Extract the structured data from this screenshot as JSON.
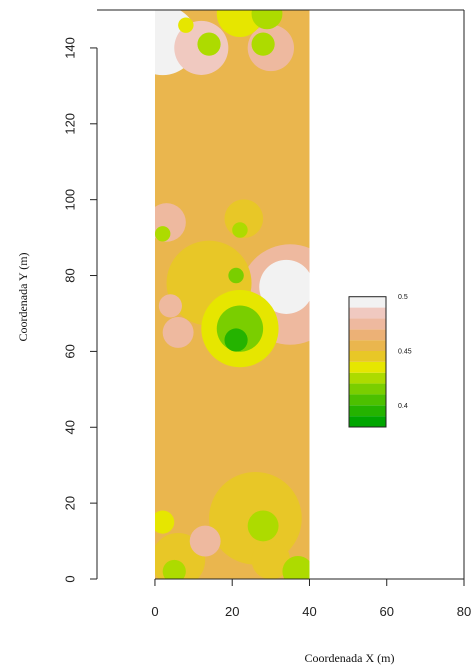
{
  "chart_data": {
    "type": "heatmap",
    "xlabel": "Coordenada X (m)",
    "ylabel": "Coordenada Y (m)",
    "xlim": [
      -15,
      80
    ],
    "ylim": [
      0,
      150
    ],
    "x_ticks": [
      "0",
      "20",
      "40",
      "60",
      "80"
    ],
    "y_ticks": [
      "0",
      "20",
      "40",
      "60",
      "80",
      "100",
      "120",
      "140"
    ],
    "field_extent": {
      "x": [
        0,
        40
      ],
      "y": [
        0,
        150
      ]
    },
    "background_value": 0.455,
    "legend": {
      "labels": [
        "0.5",
        "0.45",
        "0.4"
      ],
      "label_values": [
        0.5,
        0.45,
        0.4
      ],
      "breaks": [
        0.38,
        0.39,
        0.4,
        0.41,
        0.42,
        0.43,
        0.44,
        0.45,
        0.46,
        0.47,
        0.48,
        0.49,
        0.5,
        0.51,
        0.52
      ],
      "colors": [
        "#00a600",
        "#24b300",
        "#4cc000",
        "#7ace00",
        "#addb00",
        "#e6e600",
        "#e8c727",
        "#eab64e",
        "#ecb176",
        "#eeb99f",
        "#f0c9c0",
        "#f2f2f2"
      ]
    },
    "zones": [
      {
        "x": 2,
        "y": 142,
        "r": 9,
        "value": 0.51
      },
      {
        "x": 3,
        "y": 143,
        "r": 4,
        "value": 0.52
      },
      {
        "x": 12,
        "y": 140,
        "r": 7,
        "value": 0.48
      },
      {
        "x": 30,
        "y": 140,
        "r": 6,
        "value": 0.47
      },
      {
        "x": 22,
        "y": 149,
        "r": 6,
        "value": 0.43
      },
      {
        "x": 29,
        "y": 149,
        "r": 4,
        "value": 0.42
      },
      {
        "x": 14,
        "y": 141,
        "r": 3,
        "value": 0.42
      },
      {
        "x": 28,
        "y": 141,
        "r": 3,
        "value": 0.42
      },
      {
        "x": 8,
        "y": 146,
        "r": 2,
        "value": 0.43
      },
      {
        "x": 3,
        "y": 94,
        "r": 5,
        "value": 0.47
      },
      {
        "x": 23,
        "y": 95,
        "r": 5,
        "value": 0.44
      },
      {
        "x": 22,
        "y": 92,
        "r": 2,
        "value": 0.42
      },
      {
        "x": 35,
        "y": 75,
        "r": 13,
        "value": 0.475
      },
      {
        "x": 34,
        "y": 77,
        "r": 7,
        "value": 0.49
      },
      {
        "x": 35,
        "y": 78,
        "r": 3,
        "value": 0.505
      },
      {
        "x": 14,
        "y": 78,
        "r": 11,
        "value": 0.44
      },
      {
        "x": 22,
        "y": 66,
        "r": 10,
        "value": 0.43
      },
      {
        "x": 22,
        "y": 66,
        "r": 6,
        "value": 0.41
      },
      {
        "x": 21,
        "y": 63,
        "r": 3,
        "value": 0.39
      },
      {
        "x": 21,
        "y": 80,
        "r": 2,
        "value": 0.41
      },
      {
        "x": 6,
        "y": 65,
        "r": 4,
        "value": 0.475
      },
      {
        "x": 4,
        "y": 72,
        "r": 3,
        "value": 0.475
      },
      {
        "x": 2,
        "y": 91,
        "r": 2,
        "value": 0.42
      },
      {
        "x": 26,
        "y": 16,
        "r": 12,
        "value": 0.44
      },
      {
        "x": 28,
        "y": 14,
        "r": 4,
        "value": 0.42
      },
      {
        "x": 6,
        "y": 5,
        "r": 7,
        "value": 0.44
      },
      {
        "x": 30,
        "y": 5,
        "r": 5,
        "value": 0.44
      },
      {
        "x": 37,
        "y": 2,
        "r": 4,
        "value": 0.42
      },
      {
        "x": 13,
        "y": 10,
        "r": 4,
        "value": 0.47
      },
      {
        "x": 2,
        "y": 15,
        "r": 3,
        "value": 0.43
      },
      {
        "x": 5,
        "y": 2,
        "r": 3,
        "value": 0.42
      }
    ]
  }
}
